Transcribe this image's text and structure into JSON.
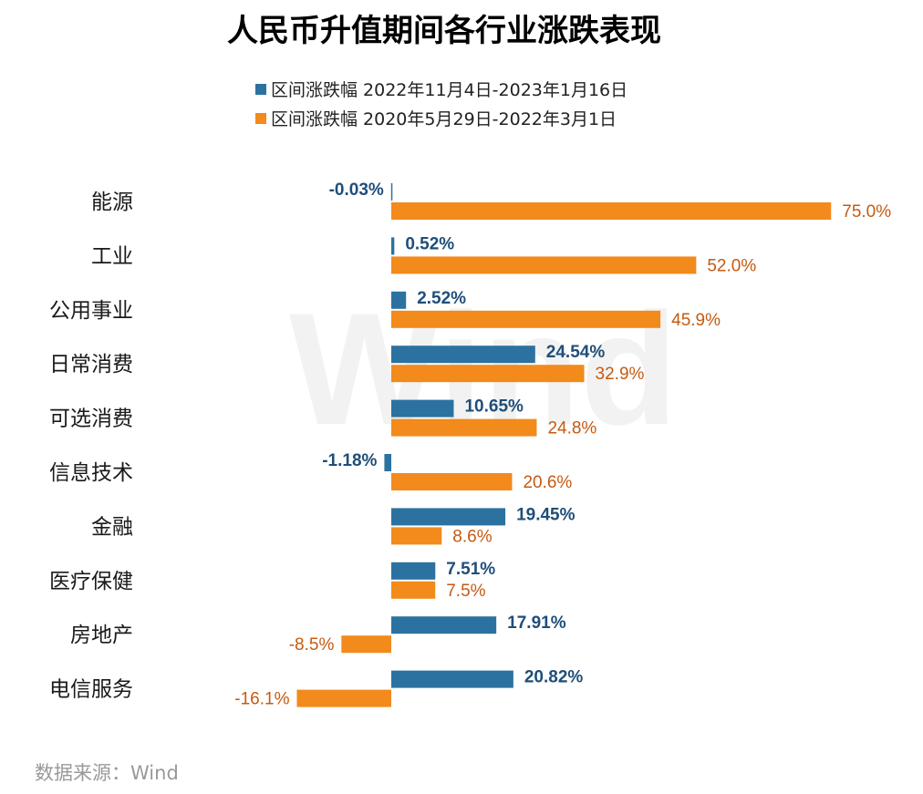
{
  "title": "人民币升值期间各行业涨跌表现",
  "source": "数据来源：Wind",
  "watermark": "Wind",
  "colors": {
    "series1": "#2c72a0",
    "series2": "#f28a1c",
    "series1_label": "#1f4e79",
    "series2_label": "#c55a11"
  },
  "chart_data": {
    "type": "bar",
    "orientation": "horizontal",
    "title": "人民币升值期间各行业涨跌表现",
    "categories": [
      "能源",
      "工业",
      "公用事业",
      "日常消费",
      "可选消费",
      "信息技术",
      "金融",
      "医疗保健",
      "房地产",
      "电信服务"
    ],
    "series": [
      {
        "name": "区间涨跌幅 2022年11月4日-2023年1月16日",
        "values": [
          -0.03,
          0.52,
          2.52,
          24.54,
          10.65,
          -1.18,
          19.45,
          7.51,
          17.91,
          20.82
        ],
        "labels": [
          "-0.03%",
          "0.52%",
          "2.52%",
          "24.54%",
          "10.65%",
          "-1.18%",
          "19.45%",
          "7.51%",
          "17.91%",
          "20.82%"
        ]
      },
      {
        "name": "区间涨跌幅 2020年5月29日-2022年3月1日",
        "values": [
          75.0,
          52.0,
          45.9,
          32.9,
          24.8,
          20.6,
          8.6,
          7.5,
          -8.5,
          -16.1
        ],
        "labels": [
          "75.0%",
          "52.0%",
          "45.9%",
          "32.9%",
          "24.8%",
          "20.6%",
          "8.6%",
          "7.5%",
          "-8.5%",
          "-16.1%"
        ]
      }
    ],
    "xlim": [
      -16.1,
      75.0
    ],
    "legend_position": "top-center",
    "grid": false,
    "xlabel": "",
    "ylabel": ""
  }
}
